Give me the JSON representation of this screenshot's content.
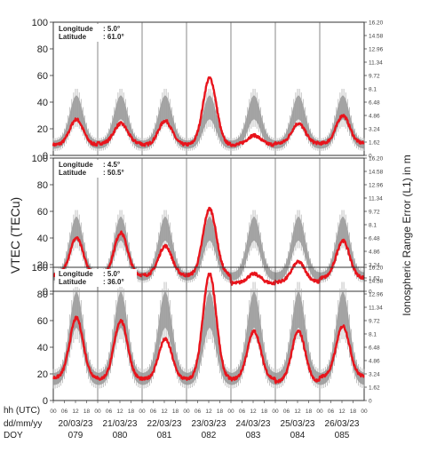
{
  "chart_data": {
    "type": "line",
    "ylabel": "VTEC (TECu)",
    "ylabel_right": "Ionospheric Range Error (L1) in m",
    "bottom_row_labels": [
      "hh (UTC)",
      "dd/mm/yy",
      "DOY"
    ],
    "hour_ticks": [
      "00",
      "06",
      "12",
      "18"
    ],
    "last_hour_tick": "00",
    "days": [
      {
        "date": "20/03/23",
        "doy": "079"
      },
      {
        "date": "21/03/23",
        "doy": "080"
      },
      {
        "date": "22/03/23",
        "doy": "081"
      },
      {
        "date": "23/03/23",
        "doy": "082"
      },
      {
        "date": "24/03/23",
        "doy": "083"
      },
      {
        "date": "25/03/23",
        "doy": "084"
      },
      {
        "date": "26/03/23",
        "doy": "085"
      }
    ],
    "xlim_hours": [
      0,
      168
    ],
    "ylim": [
      0,
      100
    ],
    "left_ticks": [
      "0",
      "20",
      "40",
      "60",
      "80",
      "100"
    ],
    "right_ticks": [
      "0",
      "1.62",
      "3.24",
      "4.86",
      "6.48",
      "8.1",
      "9.72",
      "11.34",
      "12.96",
      "14.58",
      "16.20"
    ],
    "series_legend": {
      "observed_color": "#e8141c",
      "climatology_color": "#777777"
    },
    "panels": [
      {
        "longitude_label": "Longitude",
        "longitude_value": ":  5.0°",
        "latitude_label": "Latitude",
        "latitude_value": ": 61.0°",
        "climatology_daily": {
          "peak_hour": 12.5,
          "base": 8,
          "peak": 36,
          "spread": 6
        },
        "observed_daily": [
          {
            "base": 8,
            "peak": 27
          },
          {
            "base": 9,
            "peak": 24
          },
          {
            "base": 8,
            "peak": 26
          },
          {
            "base": 8,
            "peak": 58
          },
          {
            "base": 8,
            "peak": 15
          },
          {
            "base": 9,
            "peak": 24
          },
          {
            "base": 9,
            "peak": 30
          }
        ]
      },
      {
        "longitude_label": "Longitude",
        "longitude_value": ":  4.5°",
        "latitude_label": "Latitude",
        "latitude_value": ": 50.5°",
        "climatology_daily": {
          "peak_hour": 12.5,
          "base": 11,
          "peak": 47,
          "spread": 6
        },
        "observed_daily": [
          {
            "base": 12,
            "peak": 40
          },
          {
            "base": 12,
            "peak": 44
          },
          {
            "base": 12,
            "peak": 34
          },
          {
            "base": 12,
            "peak": 62
          },
          {
            "base": 6,
            "peak": 13
          },
          {
            "base": 7,
            "peak": 22
          },
          {
            "base": 10,
            "peak": 38
          }
        ]
      },
      {
        "longitude_label": "Longitude",
        "longitude_value": ":  5.0°",
        "latitude_label": "Latitude",
        "latitude_value": ": 36.0°",
        "climatology_daily": {
          "peak_hour": 12.5,
          "base": 16,
          "peak": 68,
          "spread": 9
        },
        "observed_daily": [
          {
            "base": 17,
            "peak": 62
          },
          {
            "base": 16,
            "peak": 60
          },
          {
            "base": 16,
            "peak": 46
          },
          {
            "base": 16,
            "peak": 95
          },
          {
            "base": 16,
            "peak": 52
          },
          {
            "base": 14,
            "peak": 52
          },
          {
            "base": 18,
            "peak": 56
          }
        ]
      }
    ]
  }
}
